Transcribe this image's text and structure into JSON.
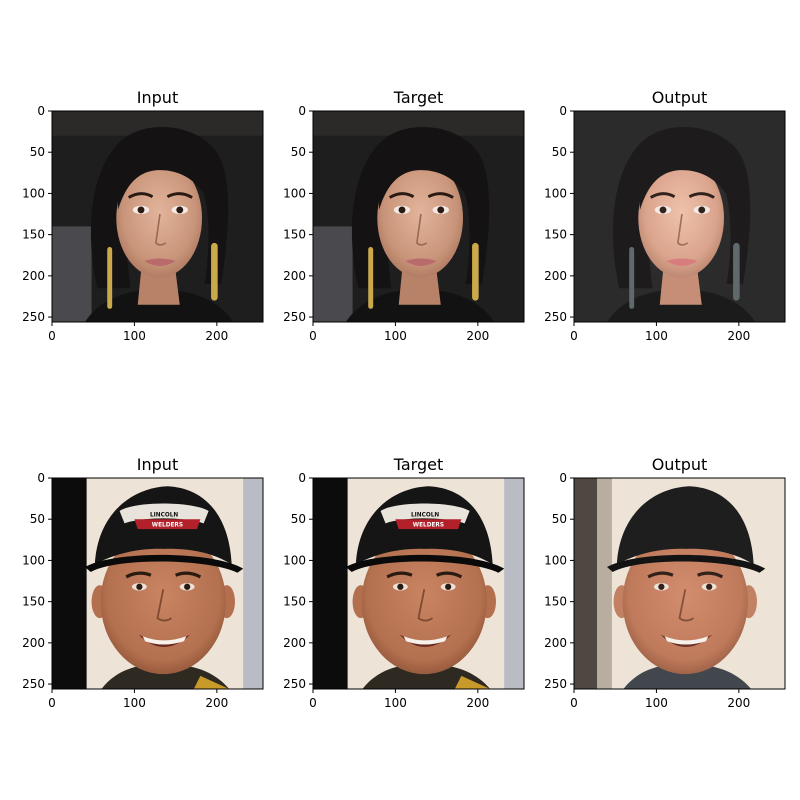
{
  "figure": {
    "panels": [
      {
        "title": "Input",
        "row": 0,
        "col": 0,
        "subject": "woman-with-earrings",
        "variant": "photo"
      },
      {
        "title": "Target",
        "row": 0,
        "col": 1,
        "subject": "woman-with-earrings",
        "variant": "photo"
      },
      {
        "title": "Output",
        "row": 0,
        "col": 2,
        "subject": "woman-with-earrings",
        "variant": "generated"
      },
      {
        "title": "Input",
        "row": 1,
        "col": 0,
        "subject": "man-in-cap",
        "variant": "photo",
        "cap_text": "LINCOLN",
        "cap_text2": "WELDERS"
      },
      {
        "title": "Target",
        "row": 1,
        "col": 1,
        "subject": "man-in-cap",
        "variant": "photo",
        "cap_text": "LINCOLN",
        "cap_text2": "WELDERS"
      },
      {
        "title": "Output",
        "row": 1,
        "col": 2,
        "subject": "man-in-cap",
        "variant": "generated",
        "cap_text": "",
        "cap_text2": ""
      }
    ],
    "x_ticks": [
      0,
      100,
      200
    ],
    "y_ticks": [
      0,
      50,
      100,
      150,
      200,
      250
    ],
    "axis_range": [
      0,
      256
    ]
  },
  "colors": {
    "skin": "#c9957a",
    "skin_man": "#b4714f",
    "hair": "#141212",
    "bg_dark": "#1e1e1e",
    "bg_light": "#ede3d6",
    "cap": "#151515",
    "cap_patch": "#b2202a"
  }
}
